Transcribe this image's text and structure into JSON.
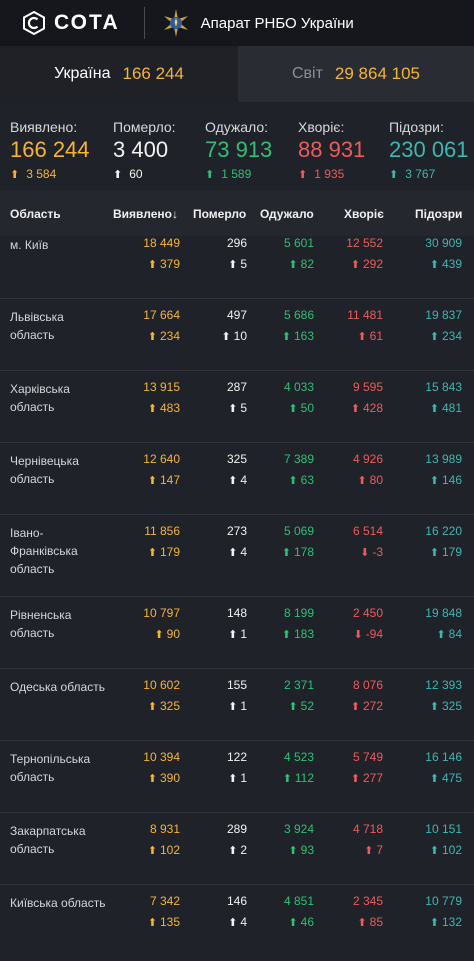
{
  "header": {
    "logo_text": "СОТА",
    "org_title": "Апарат РНБО України"
  },
  "tabs": [
    {
      "label": "Україна",
      "value": "166 244"
    },
    {
      "label": "Світ",
      "value": "29 864 105"
    }
  ],
  "summary": [
    {
      "label": "Виявлено:",
      "value": "166 244",
      "delta": "3 584",
      "color": "#f3b43a"
    },
    {
      "label": "Померло:",
      "value": "3 400",
      "delta": "60",
      "color": "#f2f2f2"
    },
    {
      "label": "Одужало:",
      "value": "73 913",
      "delta": "1 589",
      "color": "#2fbf75"
    },
    {
      "label": "Хворіє:",
      "value": "88 931",
      "delta": "1 935",
      "color": "#ef5a5a"
    },
    {
      "label": "Підозри:",
      "value": "230 061",
      "delta": "3 767",
      "color": "#3fb6b0"
    }
  ],
  "table": {
    "headers": [
      "Область",
      "Виявлено",
      "Померло",
      "Одужало",
      "Хворіє",
      "Підозри"
    ],
    "sort_indicator": "↓",
    "rows": [
      {
        "region": "м. Київ",
        "cases": "18 449",
        "cases_d": "379",
        "deaths": "296",
        "deaths_d": "5",
        "recovered": "5 601",
        "recovered_d": "82",
        "sick": "12 552",
        "sick_d": "292",
        "sick_dir": "up",
        "suspect": "30 909",
        "suspect_d": "439"
      },
      {
        "region": "Львівська область",
        "cases": "17 664",
        "cases_d": "234",
        "deaths": "497",
        "deaths_d": "10",
        "recovered": "5 686",
        "recovered_d": "163",
        "sick": "11 481",
        "sick_d": "61",
        "sick_dir": "up",
        "suspect": "19 837",
        "suspect_d": "234"
      },
      {
        "region": "Харківська область",
        "cases": "13 915",
        "cases_d": "483",
        "deaths": "287",
        "deaths_d": "5",
        "recovered": "4 033",
        "recovered_d": "50",
        "sick": "9 595",
        "sick_d": "428",
        "sick_dir": "up",
        "suspect": "15 843",
        "suspect_d": "481"
      },
      {
        "region": "Чернівецька область",
        "cases": "12 640",
        "cases_d": "147",
        "deaths": "325",
        "deaths_d": "4",
        "recovered": "7 389",
        "recovered_d": "63",
        "sick": "4 926",
        "sick_d": "80",
        "sick_dir": "up",
        "suspect": "13 989",
        "suspect_d": "146"
      },
      {
        "region": "Івано-Франківська область",
        "cases": "11 856",
        "cases_d": "179",
        "deaths": "273",
        "deaths_d": "4",
        "recovered": "5 069",
        "recovered_d": "178",
        "sick": "6 514",
        "sick_d": "-3",
        "sick_dir": "down",
        "suspect": "16 220",
        "suspect_d": "179"
      },
      {
        "region": "Рівненська область",
        "cases": "10 797",
        "cases_d": "90",
        "deaths": "148",
        "deaths_d": "1",
        "recovered": "8 199",
        "recovered_d": "183",
        "sick": "2 450",
        "sick_d": "-94",
        "sick_dir": "down",
        "suspect": "19 848",
        "suspect_d": "84"
      },
      {
        "region": "Одеська область",
        "cases": "10 602",
        "cases_d": "325",
        "deaths": "155",
        "deaths_d": "1",
        "recovered": "2 371",
        "recovered_d": "52",
        "sick": "8 076",
        "sick_d": "272",
        "sick_dir": "up",
        "suspect": "12 393",
        "suspect_d": "325"
      },
      {
        "region": "Тернопільська область",
        "cases": "10 394",
        "cases_d": "390",
        "deaths": "122",
        "deaths_d": "1",
        "recovered": "4 523",
        "recovered_d": "112",
        "sick": "5 749",
        "sick_d": "277",
        "sick_dir": "up",
        "suspect": "16 146",
        "suspect_d": "475"
      },
      {
        "region": "Закарпатська область",
        "cases": "8 931",
        "cases_d": "102",
        "deaths": "289",
        "deaths_d": "2",
        "recovered": "3 924",
        "recovered_d": "93",
        "sick": "4 718",
        "sick_d": "7",
        "sick_dir": "up",
        "suspect": "10 151",
        "suspect_d": "102"
      },
      {
        "region": "Київська область",
        "cases": "7 342",
        "cases_d": "135",
        "deaths": "146",
        "deaths_d": "4",
        "recovered": "4 851",
        "recovered_d": "46",
        "sick": "2 345",
        "sick_d": "85",
        "sick_dir": "up",
        "suspect": "10 779",
        "suspect_d": "132"
      }
    ]
  }
}
